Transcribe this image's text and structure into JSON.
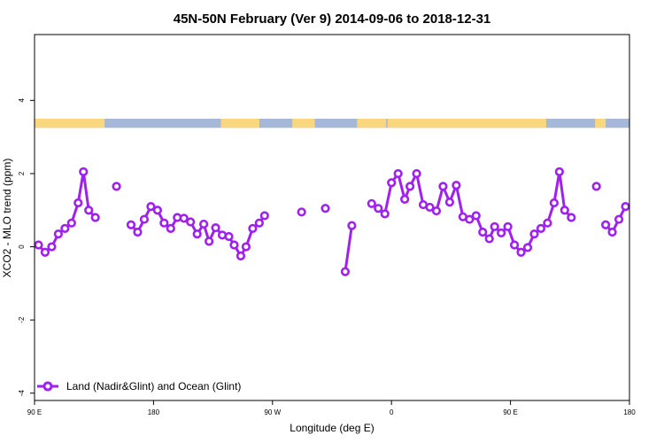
{
  "chart_data": {
    "type": "line",
    "title": "45N-50N February (Ver 9)   2014-09-06 to 2018-12-31",
    "xlabel": "Longitude (deg E)",
    "ylabel": "XCO2 - MLO trend (ppm)",
    "xlim": [
      90,
      540
    ],
    "ylim": [
      -4.2,
      5.8
    ],
    "x_ticks": [
      {
        "value": 90,
        "label": "90 E"
      },
      {
        "value": 180,
        "label": "180"
      },
      {
        "value": 270,
        "label": "90 W"
      },
      {
        "value": 360,
        "label": "0"
      },
      {
        "value": 450,
        "label": "90 E"
      },
      {
        "value": 540,
        "label": "180"
      }
    ],
    "y_ticks": [
      {
        "value": -4,
        "label": "-4"
      },
      {
        "value": -2,
        "label": "-2"
      },
      {
        "value": 0,
        "label": "0"
      },
      {
        "value": 2,
        "label": "2"
      },
      {
        "value": 4,
        "label": "4"
      }
    ],
    "legend": {
      "position": "bottom-left"
    },
    "colors": {
      "series": "#a020f0",
      "land": "#f9d77e",
      "ocean": "#a6b8d8"
    },
    "landmask": {
      "y_range": [
        3.25,
        3.5
      ],
      "land_segments": [
        [
          90,
          143
        ],
        [
          231,
          260
        ],
        [
          285,
          302
        ],
        [
          334,
          356
        ],
        [
          357,
          477
        ],
        [
          514,
          522
        ]
      ]
    },
    "series": [
      {
        "name": "Land (Nadir&Glint) and Ocean (Glint)",
        "segments": [
          [
            [
              93,
              0.05
            ],
            [
              98,
              -0.15
            ],
            [
              103,
              0.0
            ],
            [
              108,
              0.35
            ],
            [
              113,
              0.5
            ],
            [
              118,
              0.65
            ],
            [
              123,
              1.2
            ],
            [
              127,
              2.05
            ],
            [
              131,
              1.0
            ],
            [
              136,
              0.8
            ]
          ],
          [
            [
              152,
              1.65
            ]
          ],
          [
            [
              163,
              0.6
            ],
            [
              168,
              0.4
            ],
            [
              173,
              0.75
            ],
            [
              178,
              1.1
            ],
            [
              183,
              1.0
            ],
            [
              188,
              0.65
            ],
            [
              193,
              0.5
            ],
            [
              198,
              0.8
            ],
            [
              203,
              0.78
            ],
            [
              208,
              0.68
            ],
            [
              213,
              0.35
            ],
            [
              218,
              0.62
            ],
            [
              222,
              0.15
            ],
            [
              227,
              0.52
            ],
            [
              232,
              0.32
            ],
            [
              237,
              0.28
            ],
            [
              241,
              0.05
            ],
            [
              246,
              -0.25
            ],
            [
              250,
              0.0
            ],
            [
              255,
              0.5
            ],
            [
              260,
              0.65
            ],
            [
              264,
              0.85
            ]
          ],
          [
            [
              292,
              0.95
            ]
          ],
          [
            [
              310,
              1.05
            ]
          ],
          [
            [
              325,
              -0.68
            ],
            [
              330,
              0.58
            ]
          ],
          [
            [
              345,
              1.18
            ],
            [
              350,
              1.05
            ],
            [
              355,
              0.9
            ],
            [
              360,
              1.75
            ],
            [
              365,
              2.0
            ],
            [
              370,
              1.3
            ],
            [
              374,
              1.65
            ],
            [
              379,
              2.0
            ],
            [
              384,
              1.15
            ],
            [
              389,
              1.08
            ],
            [
              394,
              0.98
            ],
            [
              399,
              1.65
            ],
            [
              404,
              1.22
            ],
            [
              409,
              1.68
            ],
            [
              414,
              0.82
            ],
            [
              419,
              0.75
            ],
            [
              424,
              0.85
            ],
            [
              429,
              0.4
            ],
            [
              434,
              0.22
            ],
            [
              438,
              0.55
            ],
            [
              443,
              0.38
            ],
            [
              448,
              0.55
            ],
            [
              453,
              0.05
            ],
            [
              458,
              -0.15
            ],
            [
              463,
              -0.02
            ],
            [
              468,
              0.35
            ],
            [
              473,
              0.5
            ],
            [
              478,
              0.65
            ],
            [
              483,
              1.2
            ],
            [
              487,
              2.05
            ],
            [
              491,
              1.0
            ],
            [
              496,
              0.8
            ]
          ],
          [
            [
              515,
              1.65
            ]
          ],
          [
            [
              522,
              0.6
            ],
            [
              527,
              0.4
            ],
            [
              532,
              0.75
            ],
            [
              537,
              1.1
            ]
          ]
        ]
      }
    ]
  }
}
